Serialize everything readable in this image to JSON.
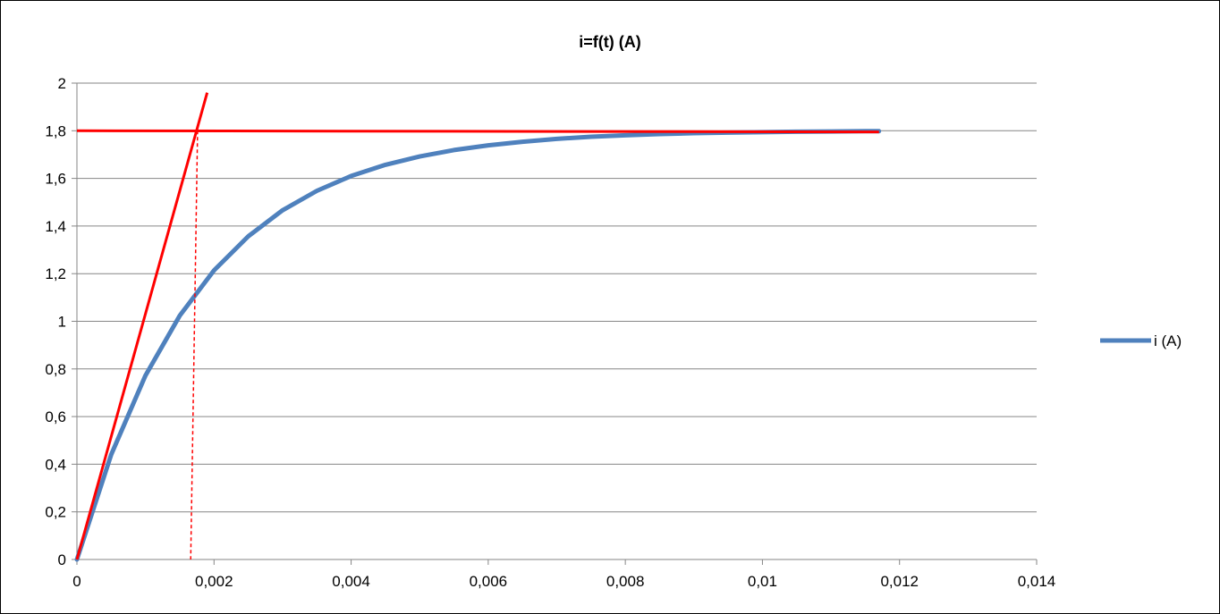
{
  "chart_data": {
    "type": "line",
    "title": "i=f(t)  (A)",
    "xlabel": "",
    "ylabel": "",
    "xlim": [
      0,
      0.014
    ],
    "ylim": [
      0,
      2
    ],
    "x_ticks": [
      "0",
      "0,002",
      "0,004",
      "0,006",
      "0,008",
      "0,01",
      "0,012",
      "0,014"
    ],
    "x_tick_values": [
      0,
      0.002,
      0.004,
      0.006,
      0.008,
      0.01,
      0.012,
      0.014
    ],
    "y_ticks": [
      "0",
      "0,2",
      "0,4",
      "0,6",
      "0,8",
      "1",
      "1,2",
      "1,4",
      "1,6",
      "1,8",
      "2"
    ],
    "y_tick_values": [
      0,
      0.2,
      0.4,
      0.6,
      0.8,
      1,
      1.2,
      1.4,
      1.6,
      1.8,
      2
    ],
    "grid": "horizontal",
    "legend_position": "right",
    "series": [
      {
        "name": "i (A)",
        "color": "#4f81bd",
        "x": [
          0,
          0.0005,
          0.001,
          0.0015,
          0.002,
          0.0025,
          0.003,
          0.0035,
          0.004,
          0.0045,
          0.005,
          0.0055,
          0.006,
          0.0065,
          0.007,
          0.0075,
          0.008,
          0.0085,
          0.009,
          0.0095,
          0.01,
          0.0105,
          0.011,
          0.0115,
          0.0117
        ],
        "y": [
          0,
          0.44,
          0.772,
          1.024,
          1.214,
          1.357,
          1.466,
          1.548,
          1.61,
          1.657,
          1.692,
          1.719,
          1.739,
          1.754,
          1.766,
          1.775,
          1.781,
          1.786,
          1.79,
          1.792,
          1.794,
          1.796,
          1.797,
          1.798,
          1.798
        ]
      }
    ],
    "annotations": [
      {
        "type": "tangent-line",
        "color": "#ff0000",
        "x": [
          0,
          0.0019
        ],
        "y": [
          0,
          1.96
        ]
      },
      {
        "type": "asymptote-line",
        "color": "#ff0000",
        "x": [
          0,
          0.0117
        ],
        "y": [
          1.8,
          1.795
        ]
      },
      {
        "type": "dashed-drop-line",
        "color": "#ff0000",
        "x": [
          0.00176,
          0.00166
        ],
        "y": [
          1.8,
          0
        ]
      }
    ]
  }
}
